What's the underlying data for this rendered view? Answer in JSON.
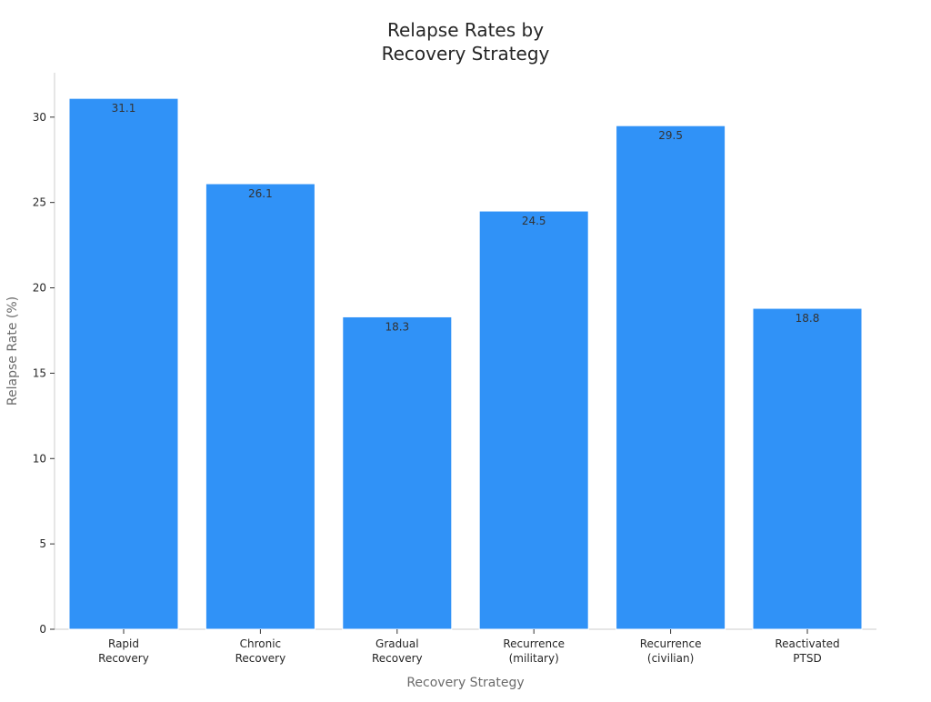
{
  "chart_data": {
    "type": "bar",
    "title_lines": [
      "Relapse Rates by",
      "Recovery Strategy"
    ],
    "xlabel": "Recovery Strategy",
    "ylabel": "Relapse Rate (%)",
    "categories": [
      [
        "Rapid",
        "Recovery"
      ],
      [
        "Chronic",
        "Recovery"
      ],
      [
        "Gradual",
        "Recovery"
      ],
      [
        "Recurrence",
        "(military)"
      ],
      [
        "Recurrence",
        "(civilian)"
      ],
      [
        "Reactivated",
        "PTSD"
      ]
    ],
    "values": [
      31.1,
      26.1,
      18.3,
      24.5,
      29.5,
      18.8
    ],
    "data_labels": [
      "31.1",
      "26.1",
      "18.3",
      "24.5",
      "29.5",
      "18.8"
    ],
    "ylim": [
      0,
      32.6
    ],
    "yticks": [
      0,
      5,
      10,
      15,
      20,
      25,
      30
    ],
    "ytick_labels": [
      "0",
      "5",
      "10",
      "15",
      "20",
      "25",
      "30"
    ],
    "bar_color": "#3092f7",
    "grid": false,
    "legend": "none"
  }
}
